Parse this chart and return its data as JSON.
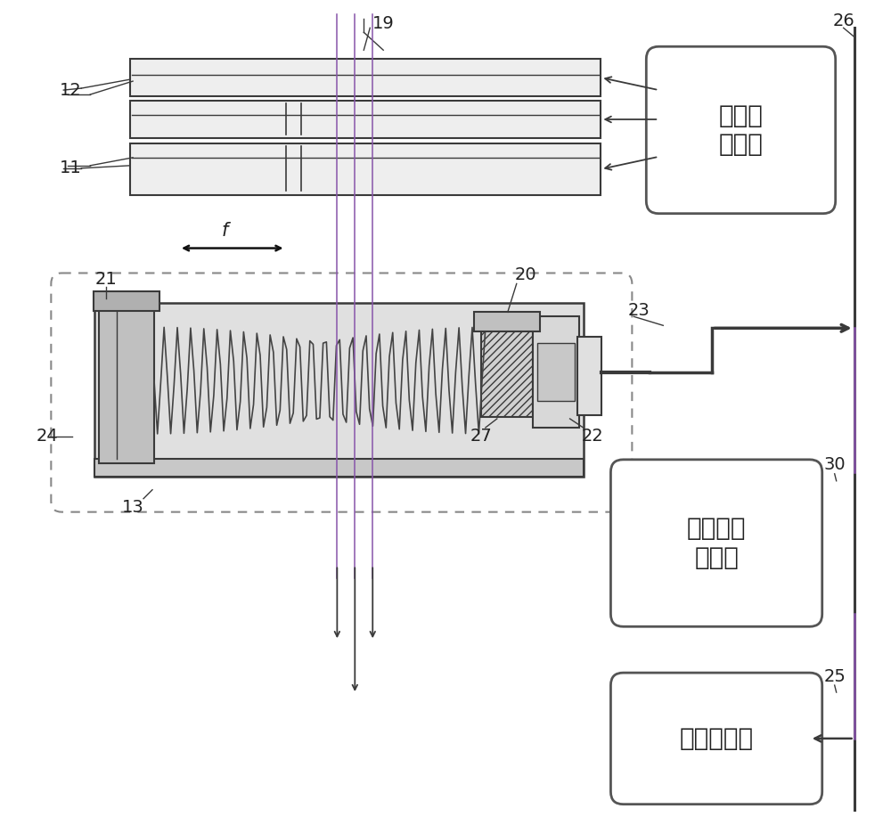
{
  "bg_color": "#ffffff",
  "lc": "#3a3a3a",
  "lc_purple": "#8855aa",
  "fig_width": 10.0,
  "fig_height": 9.26,
  "box1_label": "电离室\n控制器",
  "box2_label": "马达驱动\n控制器",
  "box3_label": "照射控制器"
}
